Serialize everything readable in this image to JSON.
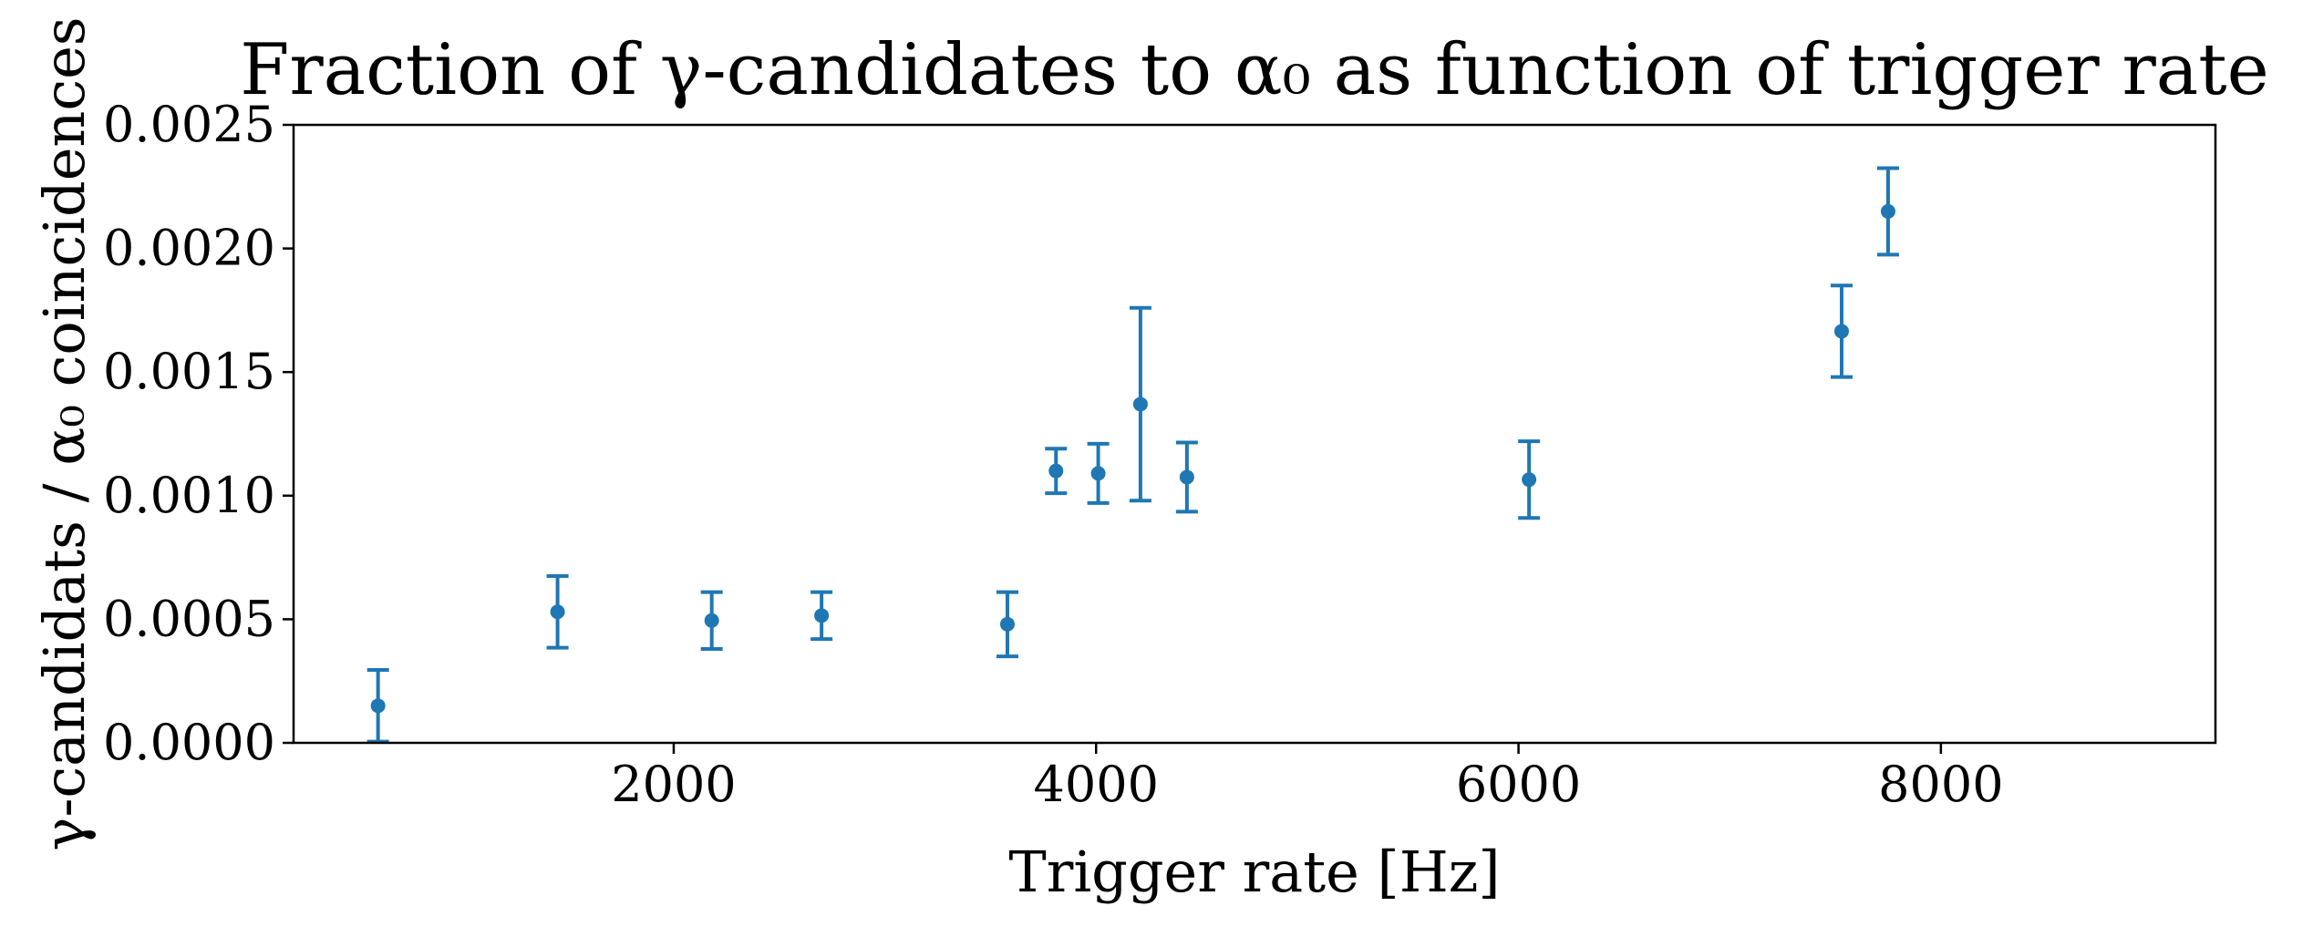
{
  "chart_data": {
    "type": "scatter",
    "title": "Fraction of γ-candidates to α₀ as function of trigger rate",
    "xlabel": "Trigger rate [Hz]",
    "ylabel": "γ-candidats / α₀ coincidences",
    "xlim": [
      200,
      9300
    ],
    "ylim": [
      0,
      0.0025
    ],
    "xticks": [
      2000,
      4000,
      6000,
      8000
    ],
    "xtick_labels": [
      "2000",
      "4000",
      "6000",
      "8000"
    ],
    "yticks": [
      0,
      0.0005,
      0.001,
      0.0015,
      0.002,
      0.0025
    ],
    "ytick_labels": [
      "0.0000",
      "0.0005",
      "0.0010",
      "0.0015",
      "0.0020",
      "0.0025"
    ],
    "grid": false,
    "legend": "none",
    "color": "#1f77b4",
    "series": [
      {
        "x": [
          600,
          1450,
          2180,
          2700,
          3580,
          3810,
          4010,
          4210,
          4430,
          6050,
          7530,
          7750
        ],
        "y": [
          0.00015,
          0.00053,
          0.000495,
          0.000515,
          0.00048,
          0.0011,
          0.00109,
          0.00137,
          0.001075,
          0.001065,
          0.001665,
          0.00215
        ],
        "yerr": [
          0.000145,
          0.000145,
          0.000115,
          9.5e-05,
          0.00013,
          9e-05,
          0.00012,
          0.00039,
          0.00014,
          0.000155,
          0.000185,
          0.000175
        ]
      }
    ]
  }
}
